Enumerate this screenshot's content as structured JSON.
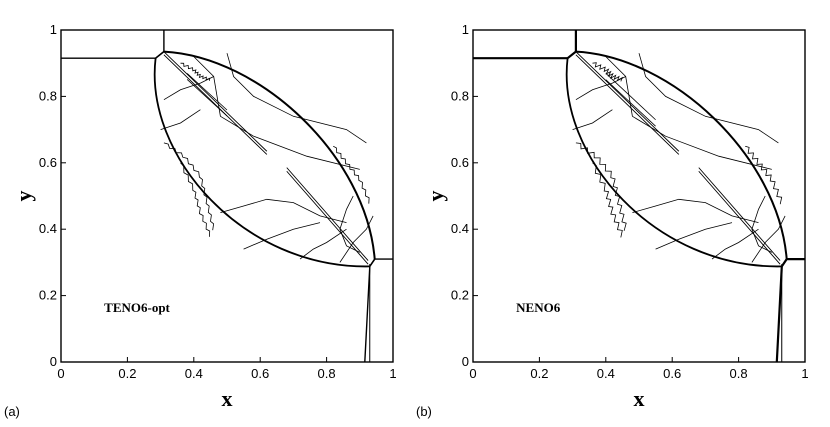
{
  "chart_data": [
    {
      "type": "contour",
      "panel_label": "(a)",
      "method_label": "TENO6-opt",
      "xlabel": "x",
      "ylabel": "y",
      "xlim": [
        0,
        1
      ],
      "ylim": [
        0,
        1
      ],
      "xticks": [
        "0",
        "0.2",
        "0.4",
        "0.6",
        "0.8",
        "1"
      ],
      "yticks": [
        "0",
        "0.2",
        "0.4",
        "0.6",
        "0.8",
        "1"
      ],
      "edge_style": "smeared"
    },
    {
      "type": "contour",
      "panel_label": "(b)",
      "method_label": "NENO6",
      "xlabel": "x",
      "ylabel": "y",
      "xlim": [
        0,
        1
      ],
      "ylim": [
        0,
        1
      ],
      "xticks": [
        "0",
        "0.2",
        "0.4",
        "0.6",
        "0.8",
        "1"
      ],
      "yticks": [
        "0",
        "0.2",
        "0.4",
        "0.6",
        "0.8",
        "1"
      ],
      "edge_style": "sharp"
    }
  ]
}
